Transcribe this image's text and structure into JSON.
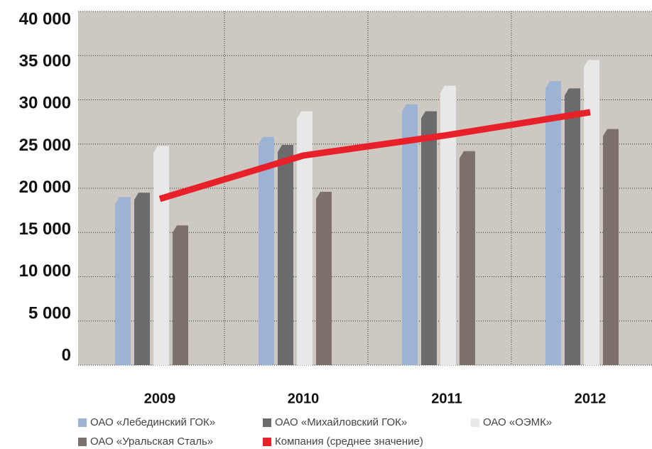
{
  "chart_data": {
    "type": "bar",
    "categories": [
      "2009",
      "2010",
      "2011",
      "2012"
    ],
    "series": [
      {
        "name": "ОАО «Лебединский ГОК»",
        "color": "#9db3d4",
        "values": [
          19000,
          25800,
          29500,
          32100
        ]
      },
      {
        "name": "ОАО «Михайловский ГОК»",
        "color": "#6b6b6e",
        "values": [
          19500,
          24900,
          28700,
          31300
        ]
      },
      {
        "name": "ОАО «ОЭМК»",
        "color": "#e8e8e8",
        "values": [
          24800,
          28700,
          31600,
          34500
        ]
      },
      {
        "name": "ОАО «Уральская Сталь»",
        "color": "#7d716b",
        "values": [
          15800,
          19600,
          24200,
          26700
        ]
      },
      {
        "name": "Компания (среднее значение)",
        "color": "#e8202a",
        "type": "line",
        "values": [
          18800,
          23700,
          26000,
          28600
        ]
      }
    ],
    "ylim": [
      0,
      40000
    ],
    "yticks": [
      0,
      {
        "value": 5000,
        "label": "5 000"
      },
      {
        "value": 10000,
        "label": "10 000"
      },
      {
        "value": 15000,
        "label": "15 000"
      },
      {
        "value": 20000,
        "label": "20 000"
      },
      {
        "value": 25000,
        "label": "25 000"
      },
      {
        "value": 30000,
        "label": "30 000"
      },
      {
        "value": 35000,
        "label": "35 000"
      },
      {
        "value": 40000,
        "label": "40 000"
      }
    ],
    "grid": true
  }
}
